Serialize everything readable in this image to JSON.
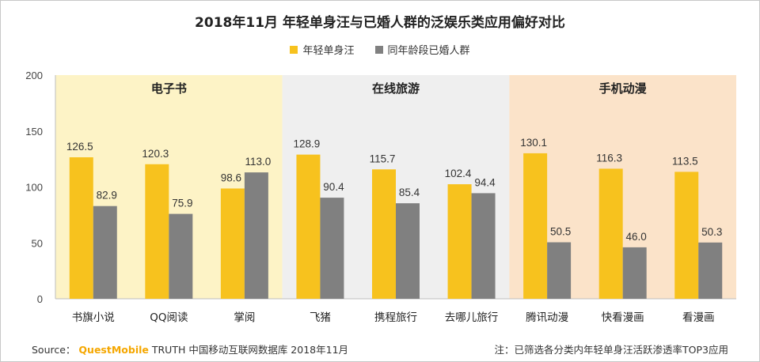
{
  "chart_data": {
    "type": "bar",
    "title": "2018年11月 年轻单身汪与已婚人群的泛娱乐类应用偏好对比",
    "ylim": [
      0,
      200
    ],
    "yticks": [
      0,
      50,
      100,
      150,
      200
    ],
    "categories": [
      "书旗小说",
      "QQ阅读",
      "掌阅",
      "飞猪",
      "携程旅行",
      "去哪儿旅行",
      "腾讯动漫",
      "快看漫画",
      "看漫画"
    ],
    "groups": [
      {
        "label": "电子书",
        "count": 3,
        "color": "#fdf3c6"
      },
      {
        "label": "在线旅游",
        "count": 3,
        "color": "#efefef"
      },
      {
        "label": "手机动漫",
        "count": 3,
        "color": "#fbe3c9"
      }
    ],
    "series": [
      {
        "name": "年轻单身汪",
        "color": "#f7c21e",
        "values": [
          126.5,
          120.3,
          98.6,
          128.9,
          115.7,
          102.4,
          130.1,
          116.3,
          113.5
        ]
      },
      {
        "name": "同年龄段已婚人群",
        "color": "#808080",
        "values": [
          82.9,
          75.9,
          113.0,
          90.4,
          85.4,
          94.4,
          50.5,
          46.0,
          50.3
        ]
      }
    ]
  },
  "footer": {
    "source_label": "Source：",
    "brand": "QuestMobile",
    "source_text": "TRUTH 中国移动互联网数据库 2018年11月",
    "note": "注：已筛选各分类内年轻单身汪活跃渗透率TOP3应用"
  }
}
